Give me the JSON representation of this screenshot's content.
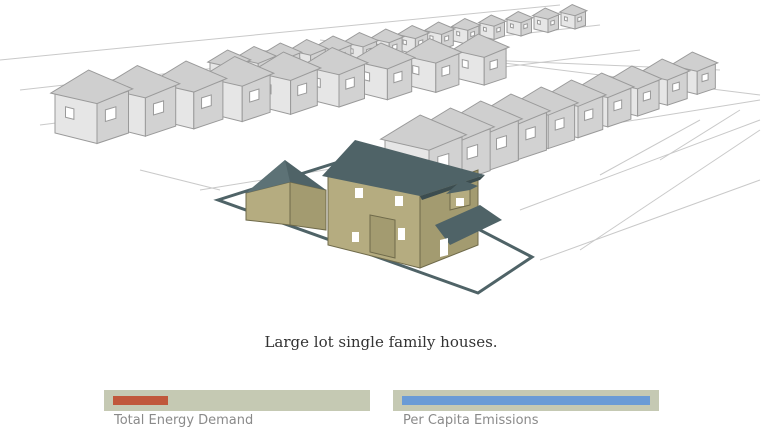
{
  "caption": "Large lot single family houses.",
  "meters": {
    "energy": {
      "label": "Total Energy Demand",
      "fraction": 0.22,
      "color": "#c0573b"
    },
    "emissions": {
      "label": "Per Capita Emissions",
      "fraction": 1.0,
      "color": "#6a9bd6"
    }
  },
  "colors": {
    "track": "#c5c9b3",
    "highlight_wall": "#b5ac80",
    "highlight_roof": "#4f6367",
    "lot_outline": "#4f6367"
  }
}
